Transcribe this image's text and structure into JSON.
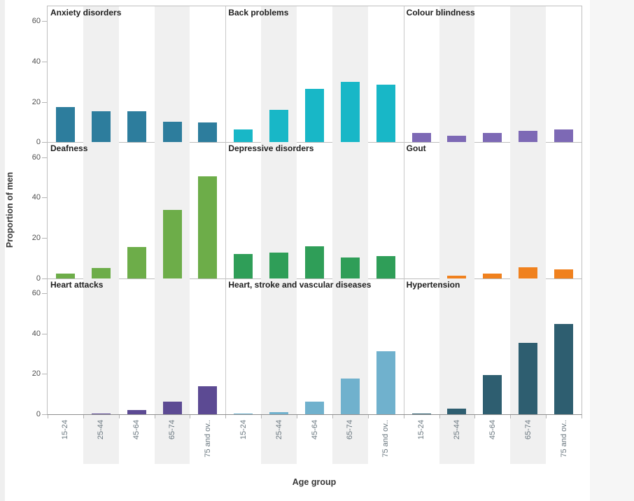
{
  "page": {
    "background": "#ffffff",
    "left_gutter_color": "#efefef",
    "right_gutter_color": "#f6f6f6",
    "band_color": "#f0f0f0"
  },
  "chart_data": {
    "type": "bar",
    "layout": "3x3 small multiples (trellis), shared axes",
    "xlabel": "Age group",
    "ylabel": "Proportion of men",
    "categories": [
      "15-24",
      "25-44",
      "45-64",
      "65-74",
      "75 and ov.."
    ],
    "yticks": [
      0,
      20,
      40,
      60
    ],
    "ylim": [
      0,
      67
    ],
    "grid": "off",
    "banded_category_indexes": [
      1,
      3
    ],
    "panels": [
      {
        "title": "Anxiety disorders",
        "color": "#2d7d9d",
        "values": [
          17.4,
          15.3,
          15.5,
          10.0,
          9.7
        ]
      },
      {
        "title": "Back problems",
        "color": "#18b7c7",
        "values": [
          6.2,
          16.1,
          26.6,
          29.8,
          28.4
        ]
      },
      {
        "title": "Colour blindness",
        "color": "#7d69b5",
        "values": [
          4.6,
          3.4,
          4.6,
          5.5,
          6.2
        ]
      },
      {
        "title": "Deafness",
        "color": "#6dad49",
        "values": [
          2.3,
          5.1,
          15.5,
          33.7,
          50.4
        ]
      },
      {
        "title": "Depressive disorders",
        "color": "#2f9e58",
        "values": [
          11.9,
          12.7,
          15.8,
          10.3,
          11.0
        ]
      },
      {
        "title": "Gout",
        "color": "#f0811e",
        "values": [
          0.0,
          1.1,
          2.2,
          5.4,
          4.4
        ]
      },
      {
        "title": "Heart attacks",
        "color": "#5c4a93",
        "values": [
          0.1,
          0.5,
          2.1,
          6.1,
          13.7
        ]
      },
      {
        "title": "Heart, stroke and vascular diseases",
        "color": "#70b1cd",
        "values": [
          0.2,
          0.9,
          6.1,
          17.8,
          31.2
        ]
      },
      {
        "title": "Hypertension",
        "color": "#2e5e70",
        "values": [
          0.2,
          2.6,
          19.3,
          35.4,
          44.7
        ]
      }
    ]
  }
}
